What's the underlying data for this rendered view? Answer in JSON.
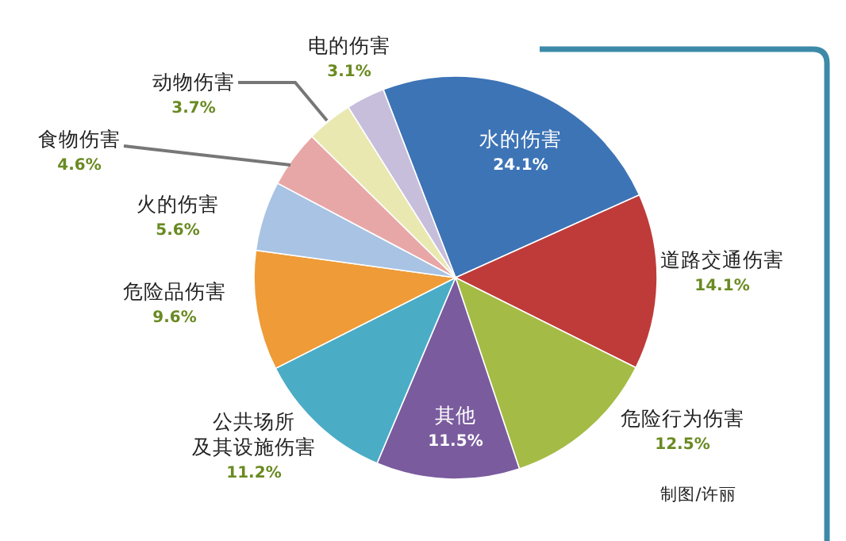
{
  "chart_data": {
    "type": "pie",
    "categories": [
      "水的伤害",
      "道路交通伤害",
      "危险行为伤害",
      "其他",
      "公共场所及其设施伤害",
      "危险品伤害",
      "火的伤害",
      "食物伤害",
      "动物伤害",
      "电的伤害"
    ],
    "values": [
      24.1,
      14.1,
      12.5,
      11.5,
      11.2,
      9.6,
      5.6,
      4.6,
      3.7,
      3.1
    ],
    "value_labels": [
      "24.1%",
      "14.1%",
      "12.5%",
      "11.5%",
      "11.2%",
      "9.6%",
      "5.6%",
      "4.6%",
      "3.7%",
      "3.1%"
    ],
    "colors": [
      "#3d74b6",
      "#be3b3a",
      "#a4bb45",
      "#7a5b9e",
      "#4bacc6",
      "#ee9b38",
      "#a8c3e3",
      "#e8a7a7",
      "#e9e8b0",
      "#c7bedc"
    ],
    "annotations": [
      "制图/许丽"
    ]
  }
}
